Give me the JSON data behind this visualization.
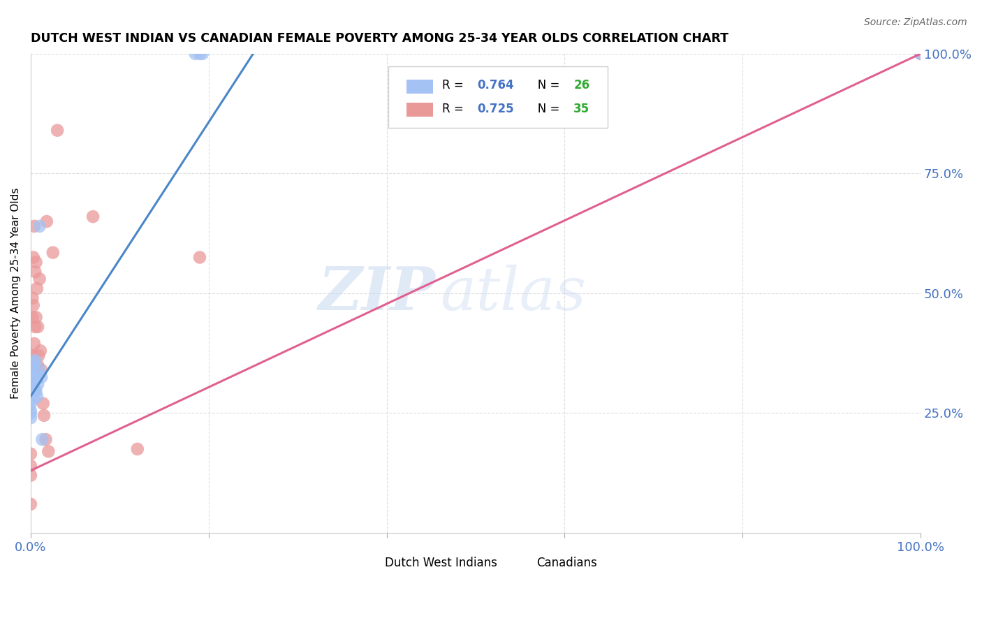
{
  "title": "DUTCH WEST INDIAN VS CANADIAN FEMALE POVERTY AMONG 25-34 YEAR OLDS CORRELATION CHART",
  "source": "Source: ZipAtlas.com",
  "ylabel": "Female Poverty Among 25-34 Year Olds",
  "xlim": [
    0.0,
    1.0
  ],
  "ylim": [
    0.0,
    1.0
  ],
  "blue_color": "#a4c2f4",
  "pink_color": "#ea9999",
  "blue_line_color": "#4a86c8",
  "pink_line_color": "#e06090",
  "legend_R_blue": "0.764",
  "legend_N_blue": "26",
  "legend_R_pink": "0.725",
  "legend_N_pink": "35",
  "watermark_zip": "ZIP",
  "watermark_atlas": "atlas",
  "axis_label_color": "#4472c4",
  "n_color": "#33aa33",
  "grid_color": "#dddddd",
  "dwi_x": [
    0.0,
    0.0,
    0.0,
    0.0,
    0.002,
    0.002,
    0.003,
    0.003,
    0.003,
    0.004,
    0.004,
    0.005,
    0.005,
    0.006,
    0.006,
    0.007,
    0.007,
    0.008,
    0.01,
    0.01,
    0.012,
    0.013,
    0.185,
    0.19,
    0.193,
    1.0
  ],
  "dwi_y": [
    0.27,
    0.255,
    0.25,
    0.24,
    0.34,
    0.31,
    0.35,
    0.33,
    0.28,
    0.355,
    0.295,
    0.36,
    0.3,
    0.32,
    0.295,
    0.33,
    0.285,
    0.31,
    0.34,
    0.64,
    0.325,
    0.195,
    1.0,
    1.0,
    1.0,
    1.0
  ],
  "can_x": [
    0.0,
    0.0,
    0.0,
    0.0,
    0.001,
    0.001,
    0.002,
    0.002,
    0.003,
    0.003,
    0.003,
    0.004,
    0.004,
    0.005,
    0.005,
    0.006,
    0.006,
    0.007,
    0.008,
    0.008,
    0.009,
    0.01,
    0.011,
    0.012,
    0.014,
    0.015,
    0.017,
    0.018,
    0.02,
    0.025,
    0.03,
    0.07,
    0.12,
    0.19,
    1.0
  ],
  "can_y": [
    0.165,
    0.14,
    0.12,
    0.06,
    0.37,
    0.35,
    0.49,
    0.45,
    0.575,
    0.475,
    0.37,
    0.64,
    0.395,
    0.545,
    0.43,
    0.565,
    0.45,
    0.51,
    0.43,
    0.35,
    0.37,
    0.53,
    0.38,
    0.34,
    0.27,
    0.245,
    0.195,
    0.65,
    0.17,
    0.585,
    0.84,
    0.66,
    0.175,
    0.575,
    1.0
  ],
  "blue_trend": [
    0.0,
    0.25
  ],
  "blue_trend_y": [
    0.285,
    1.0
  ],
  "pink_trend": [
    0.0,
    1.0
  ],
  "pink_trend_y": [
    0.13,
    1.0
  ]
}
